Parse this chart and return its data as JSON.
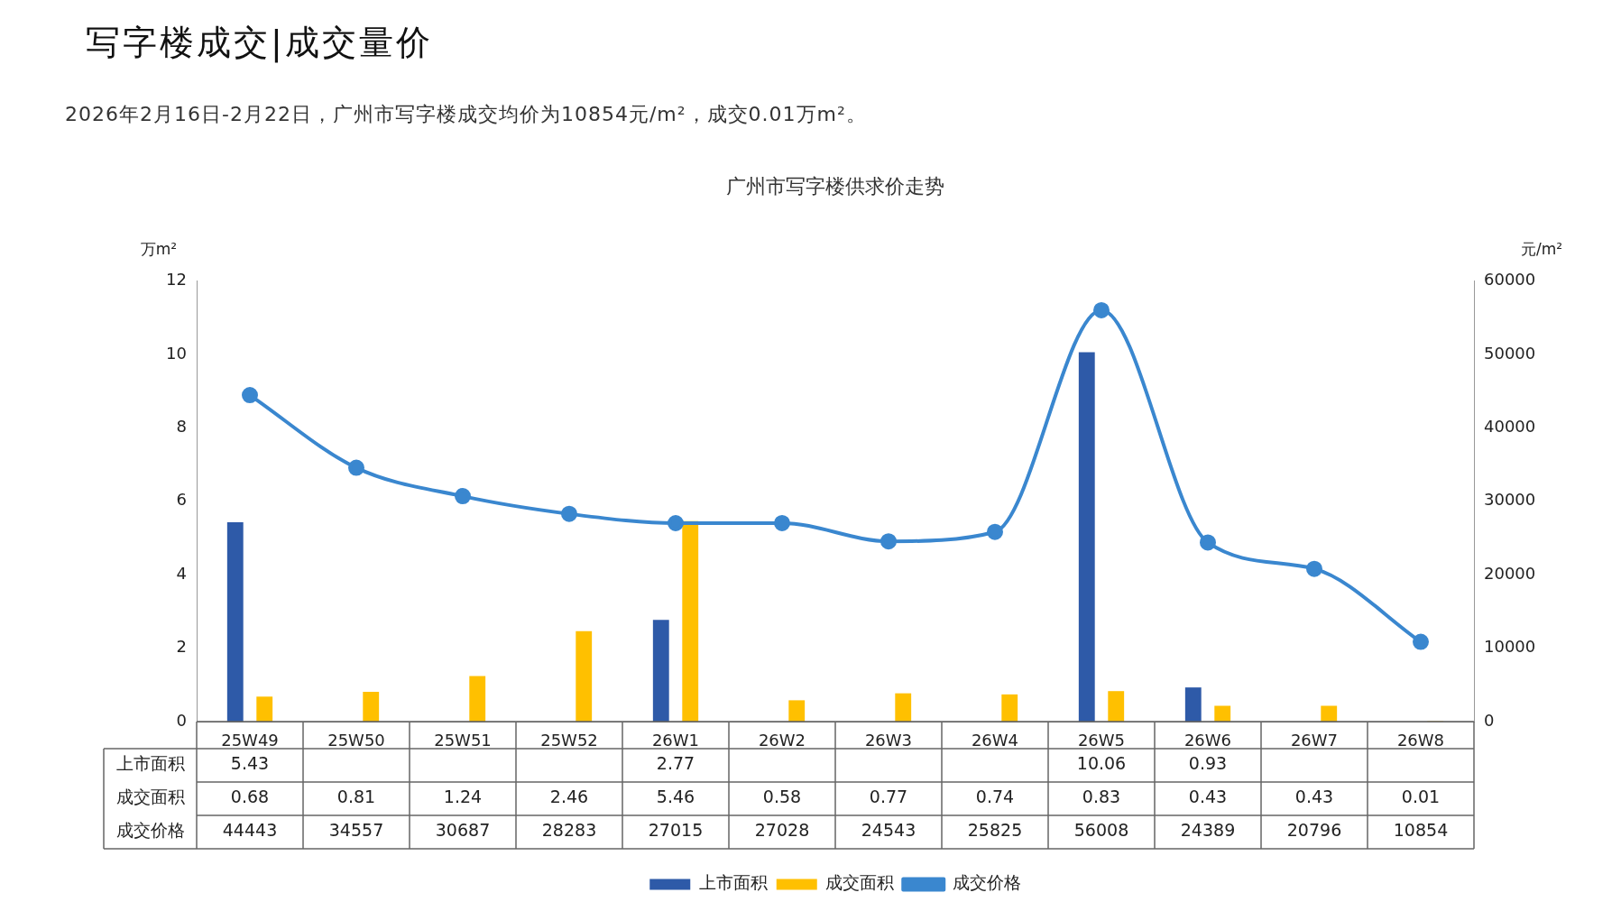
{
  "chart_data": {
    "type": "bar",
    "title": "广州市写字楼供求价走势",
    "annotations": [
      "写字楼成交|成交量价",
      "2026年2月16日-2月22日，广州市写字楼成交均价为10854元/m²，成交0.01万m²。"
    ],
    "ylabel": "万m²",
    "y2label": "元/m²",
    "categories": [
      "25W49",
      "25W50",
      "25W51",
      "25W52",
      "26W1",
      "26W2",
      "26W3",
      "26W4",
      "26W5",
      "26W6",
      "26W7",
      "26W8"
    ],
    "series": [
      {
        "name": "上市面积",
        "color": "#2e5aa8",
        "values": [
          5.43,
          null,
          null,
          null,
          2.77,
          null,
          null,
          null,
          10.06,
          0.93,
          null,
          null
        ]
      },
      {
        "name": "成交面积",
        "color": "#ffc000",
        "values": [
          0.68,
          0.81,
          1.24,
          2.46,
          5.46,
          0.58,
          0.77,
          0.74,
          0.83,
          0.43,
          0.43,
          0.01
        ]
      },
      {
        "name": "成交价格",
        "type": "line",
        "axis": "y2",
        "color": "#3a87cf",
        "values": [
          44443,
          34557,
          30687,
          28283,
          27015,
          27028,
          24543,
          25825,
          56008,
          24389,
          20796,
          10854
        ]
      }
    ],
    "ylim": [
      0,
      12
    ],
    "yticks": [
      0,
      2,
      4,
      6,
      8,
      10,
      12
    ],
    "y2lim": [
      0,
      60000
    ],
    "y2ticks": [
      0,
      10000,
      20000,
      30000,
      40000,
      50000,
      60000
    ],
    "grid": false,
    "legend": "bottom",
    "marker": "circle",
    "data_labels": true
  }
}
